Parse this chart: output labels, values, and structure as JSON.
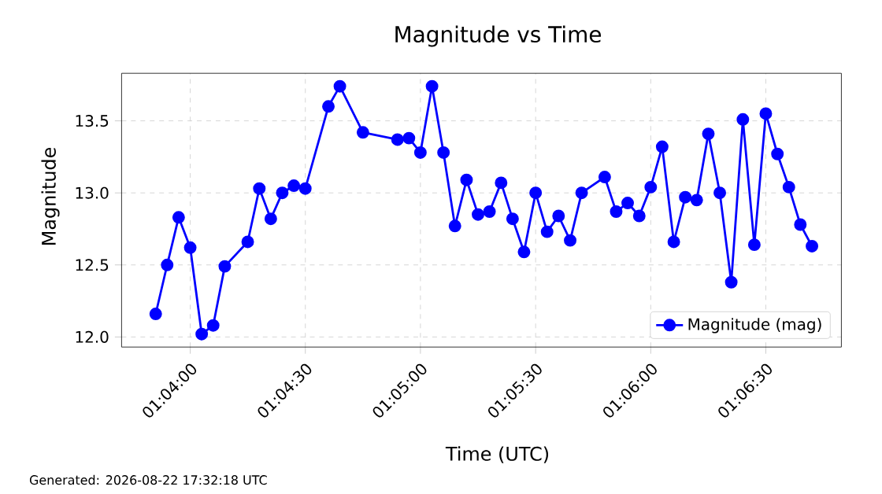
{
  "chart_data": {
    "type": "line",
    "title": "Magnitude vs Time",
    "xlabel": "Time (UTC)",
    "ylabel": "Magnitude",
    "x": [
      1.06417,
      1.065,
      1.06583,
      1.06667,
      1.0675,
      1.06833,
      1.06917,
      1.07083,
      1.07167,
      1.0725,
      1.07333,
      1.07417,
      1.075,
      1.07667,
      1.0775,
      1.07917,
      1.08167,
      1.0825,
      1.08333,
      1.08417,
      1.085,
      1.08583,
      1.08667,
      1.0875,
      1.08833,
      1.08917,
      1.09,
      1.09083,
      1.09167,
      1.0925,
      1.09333,
      1.09417,
      1.095,
      1.09667,
      1.0975,
      1.09833,
      1.09917,
      1.1,
      1.10083,
      1.10167,
      1.1025,
      1.10333,
      1.10417,
      1.105,
      1.10583,
      1.10667,
      1.1075,
      1.10833,
      1.10917,
      1.11,
      1.11083,
      1.11167
    ],
    "series": [
      {
        "name": "Magnitude (mag)",
        "color": "#0000ff",
        "values": [
          12.16,
          12.5,
          12.83,
          12.62,
          12.02,
          12.08,
          12.49,
          12.66,
          13.03,
          12.82,
          13.0,
          13.05,
          13.03,
          13.6,
          13.74,
          13.42,
          13.37,
          13.38,
          13.28,
          13.74,
          13.28,
          12.77,
          13.09,
          12.85,
          12.87,
          13.07,
          12.82,
          12.59,
          13.0,
          12.73,
          12.84,
          12.67,
          13.0,
          13.11,
          12.87,
          12.93,
          12.84,
          13.04,
          13.32,
          12.66,
          12.97,
          12.95,
          13.41,
          13.0,
          12.38,
          13.51,
          12.64,
          13.55,
          13.27,
          13.04,
          12.78,
          12.63
        ]
      }
    ],
    "xlim": [
      1.0617,
      1.1138
    ],
    "xticks": [
      {
        "value": 1.06667,
        "label": "01:04:00"
      },
      {
        "value": 1.075,
        "label": "01:04:30"
      },
      {
        "value": 1.08333,
        "label": "01:05:00"
      },
      {
        "value": 1.09167,
        "label": "01:05:30"
      },
      {
        "value": 1.1,
        "label": "01:06:00"
      },
      {
        "value": 1.10833,
        "label": "01:06:30"
      }
    ],
    "ylim": [
      11.93,
      13.83
    ],
    "yticks": [
      {
        "value": 12,
        "label": "12.0"
      },
      12.5,
      {
        "value": 13,
        "label": "13.0"
      },
      13.5
    ],
    "grid": true,
    "legend": "bottom right",
    "marker": "circle",
    "line_style": "solid",
    "annotations": [
      "Generated: 2026-08-22 17:32:18 UTC"
    ]
  }
}
